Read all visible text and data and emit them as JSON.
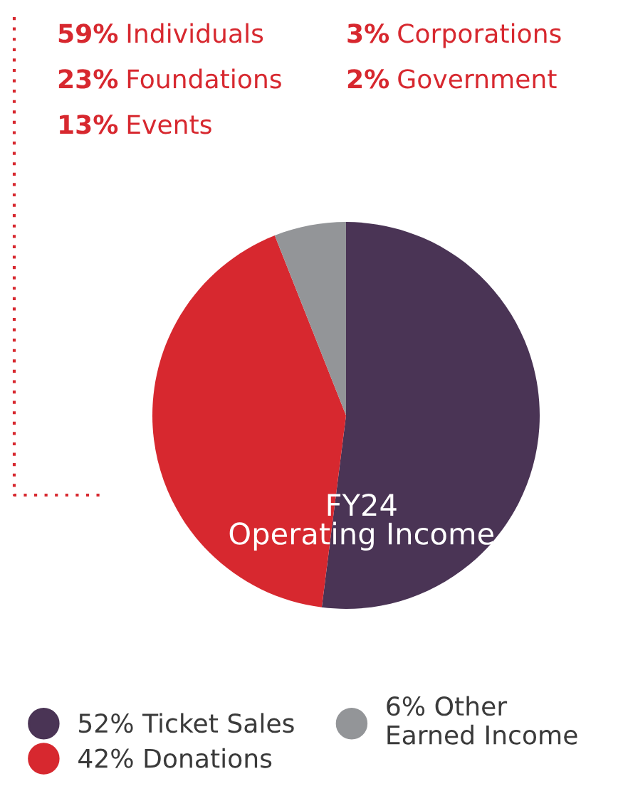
{
  "chart_data": {
    "type": "pie",
    "title": "FY24\nOperating Income",
    "categories": [
      "Ticket Sales",
      "Donations",
      "Other\nEarned Income"
    ],
    "values": [
      52,
      42,
      6
    ],
    "value_labels": [
      "52%",
      "42%",
      "6%"
    ],
    "colors": [
      "#4a3455",
      "#d7282f",
      "#939598"
    ],
    "legend": "bottom",
    "annotations": [
      "59% Individuals",
      "23% Foundations",
      "13% Events",
      "3% Corporations",
      "2% Government"
    ]
  }
}
